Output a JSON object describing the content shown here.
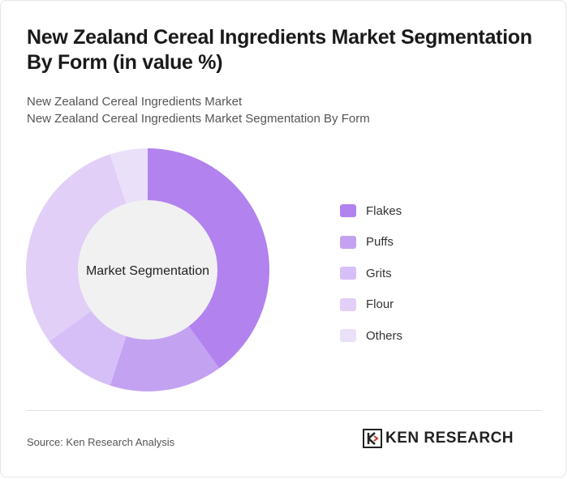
{
  "title": "New Zealand Cereal Ingredients Market Segmentation By Form (in value %)",
  "subtitle_line1": "New Zealand Cereal Ingredients Market",
  "subtitle_line2": "New Zealand Cereal Ingredients Market Segmentation By Form",
  "center_label": "Market Segmentation",
  "source": "Source: Ken Research Analysis",
  "brand": "KEN RESEARCH",
  "chart_data": {
    "type": "pie",
    "categories": [
      "Flakes",
      "Puffs",
      "Grits",
      "Flour",
      "Others"
    ],
    "values": [
      40,
      15,
      10,
      30,
      5
    ],
    "colors": [
      "#b283ee",
      "#c4a2f2",
      "#d6bff6",
      "#e1cff8",
      "#ebe0fa"
    ],
    "legend_position": "right"
  }
}
